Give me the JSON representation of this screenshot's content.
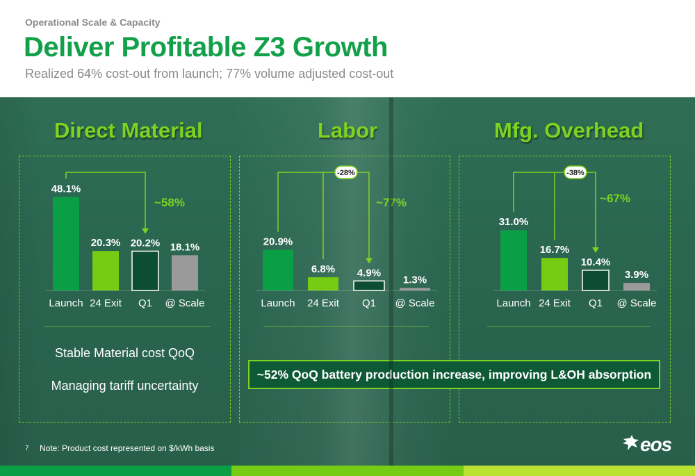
{
  "header": {
    "eyebrow": "Operational Scale & Capacity",
    "title": "Deliver Profitable Z3 Growth",
    "subtitle": "Realized 64% cost-out from launch; 77% volume adjusted cost-out"
  },
  "colors": {
    "brand_green": "#12a04a",
    "lime": "#7dd321",
    "launch_bar": "#0a9e45",
    "exit_bar": "#76cc12",
    "q1_bar": "#0d4d33",
    "scale_bar": "#9a9a9a",
    "callout_bg": "#0f5a36"
  },
  "chart_data": [
    {
      "type": "bar",
      "title": "Direct Material",
      "categories": [
        "Launch",
        "24 Exit",
        "Q1",
        "@ Scale"
      ],
      "values": [
        48.1,
        20.3,
        20.2,
        18.1
      ],
      "labels": [
        "48.1%",
        "20.3%",
        "20.2%",
        "18.1%"
      ],
      "reduction_label": "~58%",
      "delta_badge": ""
    },
    {
      "type": "bar",
      "title": "Labor",
      "categories": [
        "Launch",
        "24 Exit",
        "Q1",
        "@ Scale"
      ],
      "values": [
        20.9,
        6.8,
        4.9,
        1.3
      ],
      "labels": [
        "20.9%",
        "6.8%",
        "4.9%",
        "1.3%"
      ],
      "reduction_label": "~77%",
      "delta_badge": "-28%"
    },
    {
      "type": "bar",
      "title": "Mfg. Overhead",
      "categories": [
        "Launch",
        "24 Exit",
        "Q1",
        "@ Scale"
      ],
      "values": [
        31.0,
        16.7,
        10.4,
        3.9
      ],
      "labels": [
        "31.0%",
        "16.7%",
        "10.4%",
        "3.9%"
      ],
      "reduction_label": "~67%",
      "delta_badge": "-38%"
    }
  ],
  "direct_material_notes": [
    "Stable Material cost QoQ",
    "Managing tariff uncertainty"
  ],
  "callout": "~52% QoQ battery production increase, improving L&OH absorption",
  "footer": {
    "page_number": "7",
    "note": "Note: Product cost represented on $/kWh basis",
    "logo_text": "eos"
  }
}
